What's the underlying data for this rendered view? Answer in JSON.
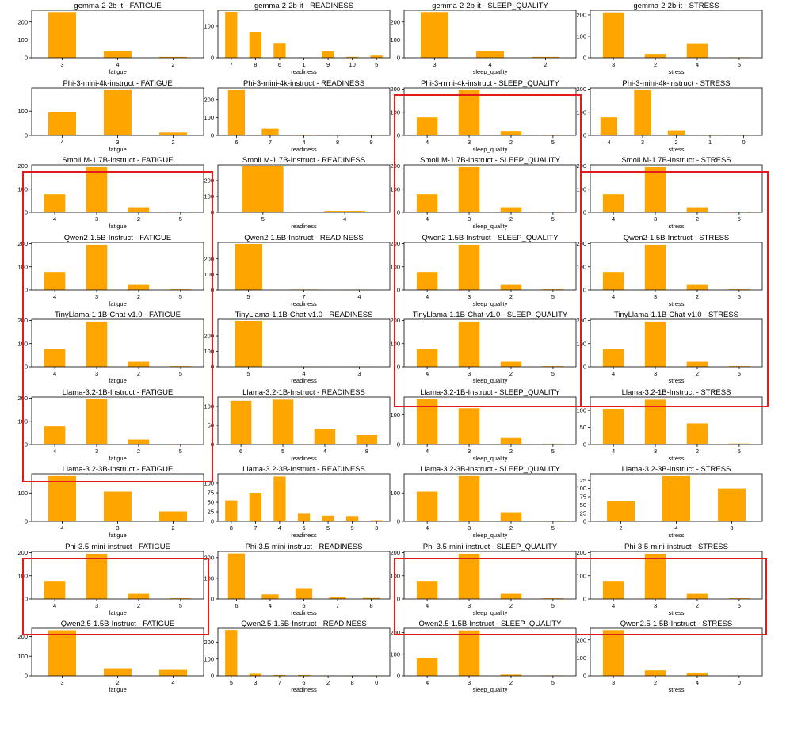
{
  "colors": {
    "bar": "#FFA500",
    "highlight": "#e31a1c"
  },
  "chart_data": [
    {
      "type": "bar",
      "title": "gemma-2-2b-it - FATIGUE",
      "xlabel": "fatigue",
      "categories": [
        "3",
        "4",
        "2"
      ],
      "values": [
        255,
        38,
        5
      ],
      "yticks": [
        0,
        100,
        200
      ],
      "ylim": [
        0,
        265
      ]
    },
    {
      "type": "bar",
      "title": "gemma-2-2b-it - READINESS",
      "xlabel": "readiness",
      "categories": [
        "7",
        "8",
        "6",
        "1",
        "9",
        "10",
        "5"
      ],
      "values": [
        145,
        82,
        47,
        1,
        22,
        3,
        7
      ],
      "yticks": [
        0,
        100
      ],
      "ylim": [
        0,
        150
      ]
    },
    {
      "type": "bar",
      "title": "gemma-2-2b-it - SLEEP_QUALITY",
      "xlabel": "sleep_quality",
      "categories": [
        "3",
        "4",
        "2"
      ],
      "values": [
        255,
        37,
        5
      ],
      "yticks": [
        0,
        100,
        200
      ],
      "ylim": [
        0,
        265
      ]
    },
    {
      "type": "bar",
      "title": "gemma-2-2b-it - STRESS",
      "xlabel": "stress",
      "categories": [
        "3",
        "2",
        "4",
        "5"
      ],
      "values": [
        212,
        18,
        68,
        2
      ],
      "yticks": [
        0,
        100,
        200
      ],
      "ylim": [
        0,
        222
      ]
    },
    {
      "type": "bar",
      "title": "Phi-3-mini-4k-instruct - FATIGUE",
      "xlabel": "fatigue",
      "categories": [
        "4",
        "3",
        "2"
      ],
      "values": [
        95,
        188,
        12
      ],
      "yticks": [
        0,
        100
      ],
      "ylim": [
        0,
        195
      ]
    },
    {
      "type": "bar",
      "title": "Phi-3-mini-4k-instruct - READINESS",
      "xlabel": "readiness",
      "categories": [
        "6",
        "7",
        "4",
        "8",
        "9"
      ],
      "values": [
        255,
        37,
        3,
        2,
        2
      ],
      "yticks": [
        0,
        100,
        200
      ],
      "ylim": [
        0,
        265
      ]
    },
    {
      "type": "bar",
      "title": "Phi-3-mini-4k-instruct - SLEEP_QUALITY",
      "xlabel": "sleep_quality",
      "categories": [
        "4",
        "3",
        "2",
        "5"
      ],
      "values": [
        78,
        195,
        20,
        2
      ],
      "yticks": [
        0,
        100,
        200
      ],
      "ylim": [
        0,
        205
      ]
    },
    {
      "type": "bar",
      "title": "Phi-3-mini-4k-instruct - STRESS",
      "xlabel": "stress",
      "categories": [
        "4",
        "3",
        "2",
        "1",
        "0"
      ],
      "values": [
        78,
        195,
        22,
        2,
        1
      ],
      "yticks": [
        0,
        100,
        200
      ],
      "ylim": [
        0,
        205
      ]
    },
    {
      "type": "bar",
      "title": "SmolLM-1.7B-Instruct - FATIGUE",
      "xlabel": "fatigue",
      "categories": [
        "4",
        "3",
        "2",
        "5"
      ],
      "values": [
        78,
        195,
        22,
        3
      ],
      "yticks": [
        0,
        100,
        200
      ],
      "ylim": [
        0,
        205
      ]
    },
    {
      "type": "bar",
      "title": "SmolLM-1.7B-Instruct - READINESS",
      "xlabel": "readiness",
      "categories": [
        "5",
        "4"
      ],
      "values": [
        290,
        10
      ],
      "yticks": [
        0,
        100,
        200
      ],
      "ylim": [
        0,
        300
      ]
    },
    {
      "type": "bar",
      "title": "SmolLM-1.7B-Instruct - SLEEP_QUALITY",
      "xlabel": "sleep_quality",
      "categories": [
        "4",
        "3",
        "2",
        "5"
      ],
      "values": [
        78,
        195,
        22,
        3
      ],
      "yticks": [
        0,
        100,
        200
      ],
      "ylim": [
        0,
        205
      ]
    },
    {
      "type": "bar",
      "title": "SmolLM-1.7B-Instruct - STRESS",
      "xlabel": "stress",
      "categories": [
        "4",
        "3",
        "2",
        "5"
      ],
      "values": [
        78,
        195,
        22,
        3
      ],
      "yticks": [
        0,
        100,
        200
      ],
      "ylim": [
        0,
        205
      ]
    },
    {
      "type": "bar",
      "title": "Qwen2-1.5B-Instruct - FATIGUE",
      "xlabel": "fatigue",
      "categories": [
        "4",
        "3",
        "2",
        "5"
      ],
      "values": [
        78,
        195,
        22,
        3
      ],
      "yticks": [
        0,
        100,
        200
      ],
      "ylim": [
        0,
        205
      ]
    },
    {
      "type": "bar",
      "title": "Qwen2-1.5B-Instruct - READINESS",
      "xlabel": "readiness",
      "categories": [
        "5",
        "7",
        "4"
      ],
      "values": [
        295,
        3,
        2
      ],
      "yticks": [
        0,
        100,
        200
      ],
      "ylim": [
        0,
        305
      ]
    },
    {
      "type": "bar",
      "title": "Qwen2-1.5B-Instruct - SLEEP_QUALITY",
      "xlabel": "sleep_quality",
      "categories": [
        "4",
        "3",
        "2",
        "5"
      ],
      "values": [
        78,
        195,
        22,
        3
      ],
      "yticks": [
        0,
        100,
        200
      ],
      "ylim": [
        0,
        205
      ]
    },
    {
      "type": "bar",
      "title": "Qwen2-1.5B-Instruct - STRESS",
      "xlabel": "stress",
      "categories": [
        "4",
        "3",
        "2",
        "5"
      ],
      "values": [
        78,
        195,
        22,
        3
      ],
      "yticks": [
        0,
        100,
        200
      ],
      "ylim": [
        0,
        205
      ]
    },
    {
      "type": "bar",
      "title": "TinyLlama-1.1B-Chat-v1.0 - FATIGUE",
      "xlabel": "fatigue",
      "categories": [
        "4",
        "3",
        "2",
        "5"
      ],
      "values": [
        78,
        195,
        22,
        3
      ],
      "yticks": [
        0,
        100,
        200
      ],
      "ylim": [
        0,
        205
      ]
    },
    {
      "type": "bar",
      "title": "TinyLlama-1.1B-Chat-v1.0 - READINESS",
      "xlabel": "readiness",
      "categories": [
        "5",
        "4",
        "3"
      ],
      "values": [
        298,
        1,
        1
      ],
      "yticks": [
        0,
        100,
        200
      ],
      "ylim": [
        0,
        308
      ]
    },
    {
      "type": "bar",
      "title": "TinyLlama-1.1B-Chat-v1.0 - SLEEP_QUALITY",
      "xlabel": "sleep_quality",
      "categories": [
        "4",
        "3",
        "2",
        "5"
      ],
      "values": [
        78,
        195,
        22,
        3
      ],
      "yticks": [
        0,
        100,
        200
      ],
      "ylim": [
        0,
        205
      ]
    },
    {
      "type": "bar",
      "title": "TinyLlama-1.1B-Chat-v1.0 - STRESS",
      "xlabel": "stress",
      "categories": [
        "4",
        "3",
        "2",
        "5"
      ],
      "values": [
        78,
        195,
        22,
        3
      ],
      "yticks": [
        0,
        100,
        200
      ],
      "ylim": [
        0,
        205
      ]
    },
    {
      "type": "bar",
      "title": "Llama-3.2-1B-Instruct - FATIGUE",
      "xlabel": "fatigue",
      "categories": [
        "4",
        "3",
        "2",
        "5"
      ],
      "values": [
        78,
        195,
        22,
        3
      ],
      "yticks": [
        0,
        100,
        200
      ],
      "ylim": [
        0,
        205
      ]
    },
    {
      "type": "bar",
      "title": "Llama-3.2-1B-Instruct - READINESS",
      "xlabel": "readiness",
      "categories": [
        "6",
        "5",
        "4",
        "8"
      ],
      "values": [
        115,
        118,
        40,
        25
      ],
      "yticks": [
        0,
        50,
        100
      ],
      "ylim": [
        0,
        125
      ]
    },
    {
      "type": "bar",
      "title": "Llama-3.2-1B-Instruct - SLEEP_QUALITY",
      "xlabel": "sleep_quality",
      "categories": [
        "4",
        "3",
        "2",
        "5"
      ],
      "values": [
        152,
        122,
        22,
        3
      ],
      "yticks": [
        0,
        100
      ],
      "ylim": [
        0,
        160
      ]
    },
    {
      "type": "bar",
      "title": "Llama-3.2-1B-Instruct - STRESS",
      "xlabel": "stress",
      "categories": [
        "4",
        "3",
        "2",
        "5"
      ],
      "values": [
        105,
        132,
        62,
        3
      ],
      "yticks": [
        0,
        50,
        100
      ],
      "ylim": [
        0,
        140
      ]
    },
    {
      "type": "bar",
      "title": "Llama-3.2-3B-Instruct - FATIGUE",
      "xlabel": "fatigue",
      "categories": [
        "4",
        "3",
        "2"
      ],
      "values": [
        160,
        105,
        35
      ],
      "yticks": [
        0,
        100
      ],
      "ylim": [
        0,
        168
      ]
    },
    {
      "type": "bar",
      "title": "Llama-3.2-3B-Instruct - READINESS",
      "xlabel": "readiness",
      "categories": [
        "8",
        "7",
        "4",
        "6",
        "5",
        "9",
        "3"
      ],
      "values": [
        55,
        75,
        118,
        20,
        15,
        14,
        3
      ],
      "yticks": [
        0,
        25,
        50,
        75,
        100
      ],
      "ylim": [
        0,
        125
      ]
    },
    {
      "type": "bar",
      "title": "Llama-3.2-3B-Instruct - SLEEP_QUALITY",
      "xlabel": "sleep_quality",
      "categories": [
        "4",
        "3",
        "2",
        "5"
      ],
      "values": [
        105,
        160,
        32,
        2
      ],
      "yticks": [
        0,
        100
      ],
      "ylim": [
        0,
        168
      ]
    },
    {
      "type": "bar",
      "title": "Llama-3.2-3B-Instruct - STRESS",
      "xlabel": "stress",
      "categories": [
        "2",
        "4",
        "3"
      ],
      "values": [
        62,
        138,
        100
      ],
      "yticks": [
        0,
        25,
        50,
        75,
        100,
        125
      ],
      "ylim": [
        0,
        145
      ]
    },
    {
      "type": "bar",
      "title": "Phi-3.5-mini-instruct - FATIGUE",
      "xlabel": "fatigue",
      "categories": [
        "4",
        "3",
        "2",
        "5"
      ],
      "values": [
        78,
        195,
        22,
        3
      ],
      "yticks": [
        0,
        100,
        200
      ],
      "ylim": [
        0,
        205
      ]
    },
    {
      "type": "bar",
      "title": "Phi-3.5-mini-instruct - READINESS",
      "xlabel": "readiness",
      "categories": [
        "6",
        "4",
        "5",
        "7",
        "8"
      ],
      "values": [
        220,
        22,
        52,
        8,
        5
      ],
      "yticks": [
        0,
        100,
        200
      ],
      "ylim": [
        0,
        230
      ]
    },
    {
      "type": "bar",
      "title": "Phi-3.5-mini-instruct - SLEEP_QUALITY",
      "xlabel": "sleep_quality",
      "categories": [
        "4",
        "3",
        "2",
        "5"
      ],
      "values": [
        78,
        195,
        22,
        3
      ],
      "yticks": [
        0,
        100,
        200
      ],
      "ylim": [
        0,
        205
      ]
    },
    {
      "type": "bar",
      "title": "Phi-3.5-mini-instruct - STRESS",
      "xlabel": "stress",
      "categories": [
        "4",
        "3",
        "2",
        "5"
      ],
      "values": [
        78,
        195,
        22,
        3
      ],
      "yticks": [
        0,
        100,
        200
      ],
      "ylim": [
        0,
        205
      ]
    },
    {
      "type": "bar",
      "title": "Qwen2.5-1.5B-Instruct - FATIGUE",
      "xlabel": "fatigue",
      "categories": [
        "3",
        "2",
        "4"
      ],
      "values": [
        232,
        38,
        30
      ],
      "yticks": [
        0,
        100,
        200
      ],
      "ylim": [
        0,
        242
      ]
    },
    {
      "type": "bar",
      "title": "Qwen2.5-1.5B-Instruct - READINESS",
      "xlabel": "readiness",
      "categories": [
        "5",
        "3",
        "7",
        "6",
        "2",
        "8",
        "0"
      ],
      "values": [
        272,
        12,
        5,
        5,
        2,
        2,
        2
      ],
      "yticks": [
        0,
        100,
        200
      ],
      "ylim": [
        0,
        282
      ]
    },
    {
      "type": "bar",
      "title": "Qwen2.5-1.5B-Instruct - SLEEP_QUALITY",
      "xlabel": "sleep_quality",
      "categories": [
        "4",
        "3",
        "2",
        "5"
      ],
      "values": [
        82,
        210,
        6,
        2
      ],
      "yticks": [
        0,
        100,
        200
      ],
      "ylim": [
        0,
        220
      ]
    },
    {
      "type": "bar",
      "title": "Qwen2.5-1.5B-Instruct - STRESS",
      "xlabel": "stress",
      "categories": [
        "3",
        "2",
        "4",
        "0"
      ],
      "values": [
        255,
        30,
        18,
        1
      ],
      "yticks": [
        0,
        100,
        200
      ],
      "ylim": [
        0,
        265
      ]
    }
  ]
}
